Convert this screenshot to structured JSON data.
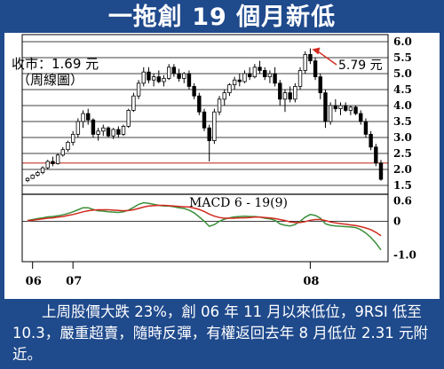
{
  "header": {
    "title": "一拖創 19 個月新低"
  },
  "caption": "上周股價大跌 23%，創 06 年 11 月以來低位，9RSI 低至 10.3，嚴重超賣，隨時反彈，有權返回去年 8 月低位 2.31 元附近。",
  "colors": {
    "background": "#1f4a8c",
    "up_candle": "#ffffff",
    "down_candle": "#000000",
    "support": "#c0392b",
    "macd_fast": "#3a8f3a",
    "macd_slow": "#d12a1f",
    "annotation": "#d12a1f"
  },
  "chart_data": [
    {
      "type": "candlestick",
      "annotation_close": "收市：1.69 元",
      "annotation_period": "（周線圖）",
      "peak_label": "5.79 元",
      "support_line": 2.2,
      "ylim": [
        1.5,
        6.0
      ],
      "y_ticks": [
        "6.0",
        "5.5",
        "5.0",
        "4.5",
        "4.0",
        "3.5",
        "3.0",
        "2.5",
        "2.0",
        "1.5"
      ],
      "x_tick_labels": [
        "06",
        "07",
        "08"
      ],
      "x_tick_index": [
        1,
        9,
        56
      ],
      "candles": [
        [
          1.65,
          1.75,
          1.6,
          1.72
        ],
        [
          1.72,
          1.85,
          1.7,
          1.82
        ],
        [
          1.82,
          1.95,
          1.78,
          1.9
        ],
        [
          1.9,
          2.1,
          1.85,
          2.05
        ],
        [
          2.05,
          2.3,
          2.0,
          2.25
        ],
        [
          2.25,
          2.4,
          2.1,
          2.18
        ],
        [
          2.18,
          2.5,
          2.15,
          2.45
        ],
        [
          2.45,
          2.7,
          2.4,
          2.62
        ],
        [
          2.62,
          2.9,
          2.55,
          2.85
        ],
        [
          2.85,
          3.2,
          2.75,
          3.1
        ],
        [
          3.1,
          3.6,
          3.0,
          3.5
        ],
        [
          3.5,
          3.85,
          3.3,
          3.75
        ],
        [
          3.75,
          3.9,
          3.4,
          3.55
        ],
        [
          3.55,
          3.6,
          3.0,
          3.1
        ],
        [
          3.1,
          3.3,
          2.9,
          3.2
        ],
        [
          3.2,
          3.4,
          3.05,
          3.3
        ],
        [
          3.3,
          3.35,
          3.0,
          3.05
        ],
        [
          3.05,
          3.3,
          2.95,
          3.25
        ],
        [
          3.25,
          3.35,
          3.0,
          3.1
        ],
        [
          3.1,
          3.4,
          3.05,
          3.35
        ],
        [
          3.35,
          3.9,
          3.3,
          3.85
        ],
        [
          3.85,
          4.4,
          3.8,
          4.3
        ],
        [
          4.3,
          4.8,
          4.2,
          4.7
        ],
        [
          4.7,
          5.2,
          4.6,
          5.05
        ],
        [
          5.05,
          5.2,
          4.7,
          4.8
        ],
        [
          4.8,
          5.0,
          4.6,
          4.9
        ],
        [
          4.9,
          5.1,
          4.7,
          4.75
        ],
        [
          4.75,
          4.95,
          4.6,
          4.85
        ],
        [
          4.85,
          5.3,
          4.8,
          5.2
        ],
        [
          5.2,
          5.3,
          4.9,
          5.0
        ],
        [
          5.0,
          5.15,
          4.75,
          4.85
        ],
        [
          4.85,
          5.05,
          4.7,
          5.0
        ],
        [
          5.0,
          5.1,
          4.5,
          4.6
        ],
        [
          4.6,
          4.7,
          4.2,
          4.3
        ],
        [
          4.3,
          4.4,
          3.7,
          3.8
        ],
        [
          3.8,
          3.9,
          3.2,
          3.3
        ],
        [
          3.3,
          3.4,
          2.25,
          2.9
        ],
        [
          2.9,
          3.9,
          2.8,
          3.8
        ],
        [
          3.8,
          4.3,
          3.7,
          4.2
        ],
        [
          4.2,
          4.5,
          4.0,
          4.4
        ],
        [
          4.4,
          4.7,
          4.3,
          4.65
        ],
        [
          4.65,
          4.9,
          4.5,
          4.8
        ],
        [
          4.8,
          5.0,
          4.6,
          4.75
        ],
        [
          4.75,
          5.1,
          4.7,
          5.0
        ],
        [
          5.0,
          5.2,
          4.8,
          4.9
        ],
        [
          4.9,
          5.3,
          4.85,
          5.2
        ],
        [
          5.2,
          5.4,
          5.0,
          5.1
        ],
        [
          5.1,
          5.2,
          4.8,
          4.9
        ],
        [
          4.9,
          5.1,
          4.7,
          5.0
        ],
        [
          5.0,
          5.2,
          4.6,
          4.7
        ],
        [
          4.7,
          4.8,
          4.0,
          4.2
        ],
        [
          4.2,
          4.5,
          3.8,
          4.4
        ],
        [
          4.4,
          4.6,
          4.1,
          4.2
        ],
        [
          4.2,
          4.7,
          4.1,
          4.6
        ],
        [
          4.6,
          5.2,
          4.5,
          5.1
        ],
        [
          5.1,
          5.7,
          5.0,
          5.6
        ],
        [
          5.6,
          5.79,
          5.3,
          5.4
        ],
        [
          5.4,
          5.5,
          4.8,
          4.9
        ],
        [
          4.9,
          5.0,
          4.2,
          4.4
        ],
        [
          4.4,
          4.5,
          3.3,
          3.5
        ],
        [
          3.5,
          4.1,
          3.4,
          4.0
        ],
        [
          4.0,
          4.2,
          3.8,
          3.9
        ],
        [
          3.9,
          4.1,
          3.7,
          4.0
        ],
        [
          4.0,
          4.1,
          3.8,
          3.85
        ],
        [
          3.85,
          4.0,
          3.7,
          3.95
        ],
        [
          3.95,
          4.0,
          3.7,
          3.75
        ],
        [
          3.75,
          3.85,
          3.4,
          3.5
        ],
        [
          3.5,
          3.6,
          3.0,
          3.1
        ],
        [
          3.1,
          3.2,
          2.6,
          2.7
        ],
        [
          2.7,
          2.8,
          2.1,
          2.2
        ],
        [
          2.2,
          2.3,
          1.65,
          1.69
        ]
      ]
    },
    {
      "type": "line",
      "title": "MACD 6 - 19(9)",
      "ylim": [
        -1.2,
        0.8
      ],
      "y_ticks": [
        "0.6",
        "0",
        "-1.0"
      ],
      "y_tick_values": [
        0.6,
        0,
        -1.0
      ],
      "series": [
        {
          "values": [
            0.02,
            0.05,
            0.08,
            0.1,
            0.13,
            0.14,
            0.16,
            0.19,
            0.23,
            0.28,
            0.34,
            0.4,
            0.4,
            0.35,
            0.31,
            0.3,
            0.28,
            0.27,
            0.26,
            0.28,
            0.33,
            0.41,
            0.5,
            0.55,
            0.53,
            0.5,
            0.47,
            0.45,
            0.45,
            0.43,
            0.4,
            0.38,
            0.33,
            0.25,
            0.13,
            0.0,
            -0.15,
            -0.1,
            0.0,
            0.06,
            0.1,
            0.13,
            0.14,
            0.15,
            0.14,
            0.14,
            0.12,
            0.09,
            0.07,
            0.03,
            -0.08,
            -0.12,
            -0.14,
            -0.1,
            0.0,
            0.12,
            0.2,
            0.17,
            0.09,
            -0.08,
            -0.12,
            -0.14,
            -0.15,
            -0.16,
            -0.17,
            -0.19,
            -0.25,
            -0.35,
            -0.48,
            -0.65,
            -0.85
          ]
        },
        {
          "values": [
            0.02,
            0.03,
            0.05,
            0.07,
            0.09,
            0.1,
            0.12,
            0.14,
            0.17,
            0.2,
            0.24,
            0.28,
            0.31,
            0.33,
            0.34,
            0.34,
            0.34,
            0.33,
            0.32,
            0.31,
            0.32,
            0.34,
            0.38,
            0.42,
            0.45,
            0.46,
            0.47,
            0.47,
            0.46,
            0.45,
            0.44,
            0.43,
            0.42,
            0.39,
            0.35,
            0.29,
            0.21,
            0.15,
            0.11,
            0.09,
            0.09,
            0.09,
            0.1,
            0.1,
            0.11,
            0.12,
            0.12,
            0.11,
            0.1,
            0.08,
            0.05,
            0.02,
            -0.02,
            -0.04,
            -0.04,
            -0.01,
            0.03,
            0.05,
            0.05,
            0.02,
            -0.02,
            -0.05,
            -0.07,
            -0.09,
            -0.11,
            -0.13,
            -0.16,
            -0.2,
            -0.25,
            -0.33,
            -0.43
          ]
        }
      ]
    }
  ]
}
